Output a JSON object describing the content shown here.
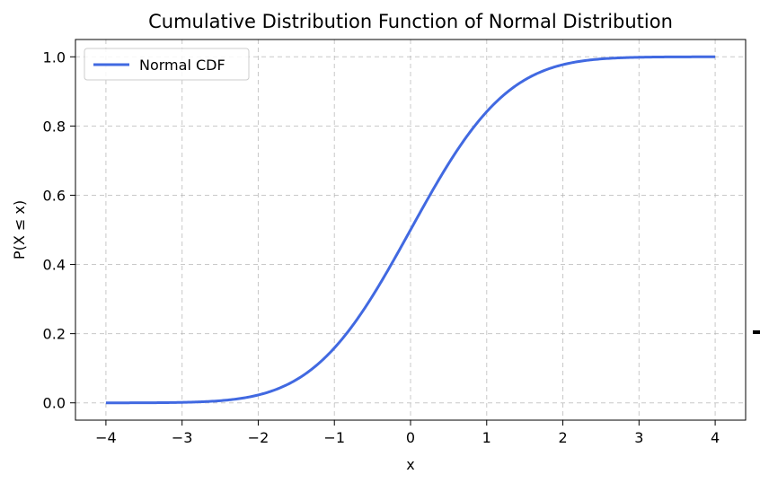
{
  "chart_data": {
    "type": "line",
    "title": "Cumulative Distribution Function of Normal Distribution",
    "xlabel": "x",
    "ylabel": "P(X ≤ x)",
    "xlim": [
      -4.4,
      4.4
    ],
    "ylim": [
      -0.05,
      1.05
    ],
    "grid": true,
    "grid_style": "dashed",
    "legend": "top-left",
    "xticks": [
      -4,
      -3,
      -2,
      -1,
      0,
      1,
      2,
      3,
      4
    ],
    "xtick_labels": [
      "−4",
      "−3",
      "−2",
      "−1",
      "0",
      "1",
      "2",
      "3",
      "4"
    ],
    "yticks": [
      0.0,
      0.2,
      0.4,
      0.6,
      0.8,
      1.0
    ],
    "ytick_labels": [
      "0.0",
      "0.2",
      "0.4",
      "0.6",
      "0.8",
      "1.0"
    ],
    "series": [
      {
        "name": "Normal CDF",
        "color": "#4169e1",
        "function": "standard normal CDF",
        "x_range": [
          -4,
          4
        ],
        "x": [
          -4,
          -3.5,
          -3,
          -2.5,
          -2,
          -1.5,
          -1,
          -0.5,
          0,
          0.5,
          1,
          1.5,
          2,
          2.5,
          3,
          3.5,
          4
        ],
        "y": [
          3e-05,
          0.00023,
          0.00135,
          0.00621,
          0.02275,
          0.06681,
          0.15866,
          0.30854,
          0.5,
          0.69146,
          0.84134,
          0.93319,
          0.97725,
          0.99379,
          0.99865,
          0.99977,
          0.99997
        ]
      }
    ]
  }
}
